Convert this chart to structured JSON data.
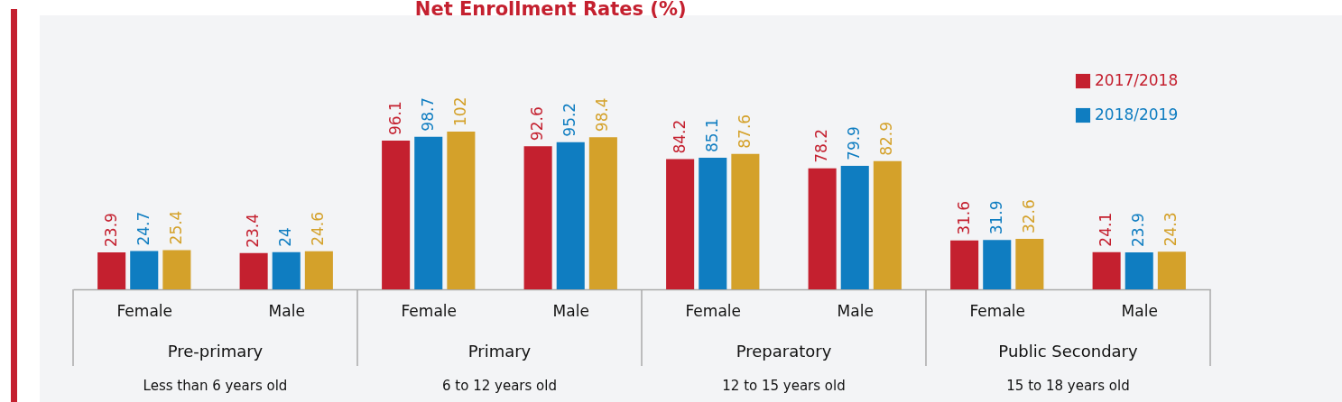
{
  "chart_data": {
    "type": "bar",
    "title": "Net Enrollment Rates (%)",
    "categories": [
      "Female",
      "Male",
      "Female",
      "Male",
      "Female",
      "Male",
      "Female",
      "Male"
    ],
    "series": [
      {
        "name": "2017/2018",
        "color": "#c4202f",
        "values": [
          23.9,
          23.4,
          96.1,
          92.6,
          84.2,
          78.2,
          31.6,
          24.1
        ]
      },
      {
        "name": "2018/2019",
        "color": "#0f7dc1",
        "values": [
          24.7,
          24,
          98.7,
          95.2,
          85.1,
          79.9,
          31.9,
          23.9
        ]
      },
      {
        "color": "#d4a12a",
        "values": [
          25.4,
          24.6,
          102,
          98.4,
          87.6,
          82.9,
          32.6,
          24.3
        ]
      }
    ],
    "data_labels": true,
    "legend": "top right",
    "annotations": [
      "Pre-primary",
      "Primary",
      "Preparatory",
      "Public Secondary",
      "Less than 6 years old",
      "6 to 12 years old",
      "12 to 15 years old",
      "15 to 18 years old"
    ]
  }
}
